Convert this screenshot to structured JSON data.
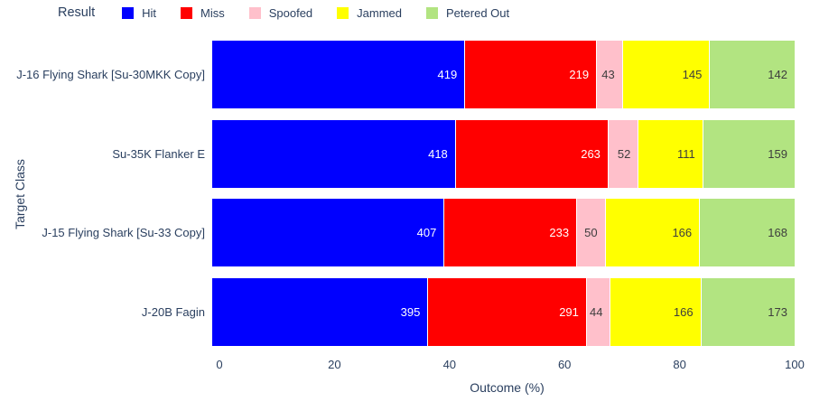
{
  "chart_data": {
    "type": "bar",
    "orientation": "horizontal",
    "stacking": "percent",
    "legend_title": "Result",
    "legend_position": "top-left",
    "grid": false,
    "categories": [
      "J-16 Flying Shark [Su-30MKK Copy]",
      "Su-35K Flanker E",
      "J-15 Flying Shark [Su-33 Copy]",
      "J-20B Fagin"
    ],
    "series": [
      {
        "name": "Hit",
        "color": "#0000ff",
        "label_color": "#ffffff",
        "values": [
          419,
          418,
          407,
          395
        ]
      },
      {
        "name": "Miss",
        "color": "#ff0000",
        "label_color": "#ffffff",
        "values": [
          219,
          263,
          233,
          291
        ]
      },
      {
        "name": "Spoofed",
        "color": "#ffc0cb",
        "label_color": "#3d3d3d",
        "values": [
          43,
          52,
          50,
          44
        ]
      },
      {
        "name": "Jammed",
        "color": "#ffff00",
        "label_color": "#3d3d3d",
        "values": [
          145,
          111,
          166,
          166
        ]
      },
      {
        "name": "Petered Out",
        "color": "#b2e481",
        "label_color": "#3d3d3d",
        "values": [
          142,
          159,
          168,
          173
        ]
      }
    ],
    "xlabel": "Outcome (%)",
    "ylabel": "Target Class",
    "xlim": [
      0,
      100
    ],
    "x_ticks": [
      0,
      20,
      40,
      60,
      80,
      100
    ],
    "axis_text_color": "#2a3f5f"
  }
}
